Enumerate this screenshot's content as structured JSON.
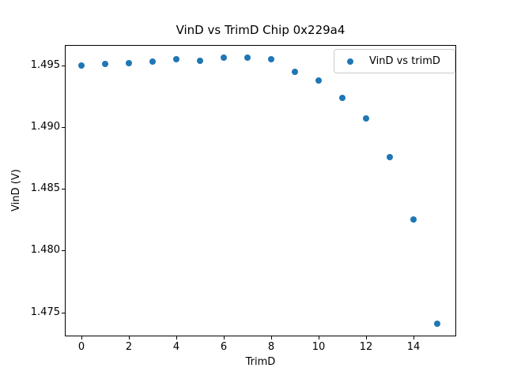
{
  "figure": {
    "background": "#ffffff",
    "axis_color": "#000000",
    "text_color": "#000000"
  },
  "chart_data": {
    "type": "scatter",
    "title": "VinD vs TrimD Chip 0x229a4",
    "xlabel": "TrimD",
    "ylabel": "VinD (V)",
    "grid": false,
    "xlim": [
      -0.7,
      15.8
    ],
    "ylim": [
      1.47306,
      1.49665
    ],
    "xticks": {
      "values": [
        0,
        2,
        4,
        6,
        8,
        10,
        12,
        14
      ],
      "labels": [
        "0",
        "2",
        "4",
        "6",
        "8",
        "10",
        "12",
        "14"
      ]
    },
    "yticks": {
      "values": [
        1.475,
        1.48,
        1.485,
        1.49,
        1.495
      ],
      "labels": [
        "1.475",
        "1.480",
        "1.485",
        "1.490",
        "1.495"
      ]
    },
    "series": [
      {
        "name": "VinD vs trimD",
        "marker": "circle",
        "marker_color": "#1f77b4",
        "x": [
          0,
          1,
          2,
          3,
          4,
          5,
          6,
          7,
          8,
          9,
          10,
          11,
          12,
          13,
          14,
          15
        ],
        "y": [
          1.495,
          1.4951,
          1.4952,
          1.4953,
          1.4955,
          1.4954,
          1.4956,
          1.4956,
          1.4955,
          1.4945,
          1.4938,
          1.4924,
          1.4907,
          1.4876,
          1.4825,
          1.4741
        ]
      }
    ],
    "legend": {
      "position": "upper right",
      "entries": [
        {
          "label": "VinD vs trimD",
          "marker": "circle",
          "color": "#1f77b4"
        }
      ]
    }
  }
}
